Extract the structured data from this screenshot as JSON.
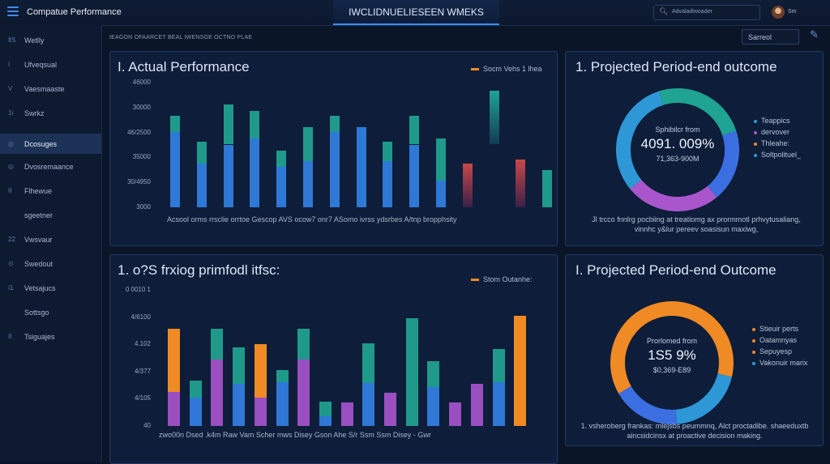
{
  "header": {
    "app_title": "Compatue Performance",
    "center_title": "IWCLIDNUELIESEEN WMEKS",
    "search_placeholder": "Advaladiwoader",
    "user_name": "Sm"
  },
  "sidebar": {
    "items": [
      {
        "icon": "ⅡS",
        "label": "Wetlly",
        "active": false
      },
      {
        "icon": "ⅰ",
        "label": "Ufveqsual",
        "active": false
      },
      {
        "icon": "V",
        "label": "Vaesmaaste",
        "active": false
      },
      {
        "icon": "1ⅰ",
        "label": "Swrkz",
        "active": false
      },
      {
        "icon": "◎",
        "label": "Dcosuges",
        "active": true
      },
      {
        "icon": "◎",
        "label": "Dvosremaance",
        "active": false
      },
      {
        "icon": "ⅠⅠ",
        "label": "Flhewue",
        "active": false
      },
      {
        "icon": "",
        "label": "sgeetner",
        "active": false
      },
      {
        "icon": "22",
        "label": "Vwsvaur",
        "active": false
      },
      {
        "icon": "⊙",
        "label": "Swedout",
        "active": false
      },
      {
        "icon": "ⅰ1",
        "label": "Vetsajucs",
        "active": false
      },
      {
        "icon": "",
        "label": "Sottsgo",
        "active": false
      },
      {
        "icon": "ⅠⅠ",
        "label": "Tsiguajes",
        "active": false
      }
    ]
  },
  "toolbar": {
    "breadcrumb": "IEAGON OFAARCET BEAL IWENSGE OCTNO PLAE",
    "search_label": "Sarreol"
  },
  "panel1": {
    "title": "I. Actual Performance",
    "legend": "Socm Vehs  1 lhea",
    "yticks": [
      "46000",
      "30000",
      "46/2500",
      "35000",
      "30/4950",
      "3000"
    ],
    "xlabels": "Acsool  orms  rrsclie  orrtoe  Gescop  AVS  ocow7  onr7     ASomo ivrss  ydsrbes  A/tnp  bropphsity"
  },
  "panel2": {
    "title": "1. o?S frxiog primfodl itfsc:",
    "legend": "Stom Outanhe:",
    "yticks": [
      "0 0010 1",
      "4/6100",
      "4.102",
      "4/377",
      "4/105",
      "40"
    ],
    "xlabels": "zwo00n  Dsed  .k4m  Raw  Vam  Scher  mws  Disey  Gson  Ahe  S/r  Ssm  Ssm  Disey  -  Gwr"
  },
  "panel3": {
    "title": "1. Projected Period-end outcome",
    "center_line1": "Sphibilcr from",
    "center_value": "4091. 009%",
    "center_line3": "71,363-900M",
    "legend": [
      {
        "label": "Teappics",
        "color": "#2e97d6"
      },
      {
        "label": "dervover",
        "color": "#a955cc"
      },
      {
        "label": "Thleahe:",
        "color": "#f08a24"
      },
      {
        "label": "Soltpolituel_",
        "color": "#2e97d6"
      }
    ],
    "note": "Jl trcco fnnlrg pocbiing at treatiomg ax prormmotl prhvytusaliang, vinnhc y&lur pereev soasisun maxiwg,"
  },
  "panel4": {
    "title": "I. Projected Period-end Outcome",
    "center_line1": "Prorlomed from",
    "center_value": "1S5 9%",
    "center_line3": "$0,369-E89",
    "legend": [
      {
        "label": "Stieuir perts",
        "color": "#f08a24"
      },
      {
        "label": "Oatamnyas",
        "color": "#f08a24"
      },
      {
        "label": "Sepuyesp",
        "color": "#f08a24"
      },
      {
        "label": "Vakonuir marix",
        "color": "#2e97d6"
      }
    ],
    "note": "1. vsheroberg frankas: mlejsbs peummnq, Alct proctadibe. shaeeduxtb aincsidcinsx at proactive decision making."
  },
  "chart_data": [
    {
      "type": "bar",
      "title": "I. Actual Performance",
      "colors": {
        "teal": "#1f9a8a",
        "blue": "#2f78d6",
        "red": "#c8474a"
      },
      "ylim": [
        3000,
        46000
      ],
      "series": [
        {
          "kind": "stacked",
          "x": 0,
          "top": 0.73,
          "split": 0.6
        },
        {
          "kind": "stacked",
          "x": 1,
          "top": 0.52,
          "split": 0.35
        },
        {
          "kind": "stacked",
          "x": 2,
          "top": 0.82,
          "split": 0.5
        },
        {
          "kind": "stacked",
          "x": 3,
          "top": 0.77,
          "split": 0.55
        },
        {
          "kind": "stacked",
          "x": 4,
          "top": 0.45,
          "split": 0.32
        },
        {
          "kind": "stacked",
          "x": 5,
          "top": 0.64,
          "split": 0.37
        },
        {
          "kind": "stacked",
          "x": 6,
          "top": 0.73,
          "split": 0.6
        },
        {
          "kind": "stacked",
          "x": 7,
          "top": 0.64,
          "split": 0.64
        },
        {
          "kind": "stacked",
          "x": 8,
          "top": 0.52,
          "split": 0.37
        },
        {
          "kind": "stacked",
          "x": 9,
          "top": 0.73,
          "split": 0.5
        },
        {
          "kind": "stacked",
          "x": 10,
          "top": 0.55,
          "split": 0.21
        },
        {
          "kind": "red",
          "x": 11,
          "top": 0.35
        },
        {
          "kind": "teal-fade",
          "x": 12,
          "top": 0.93,
          "bottom": 0.5
        },
        {
          "kind": "red",
          "x": 13,
          "top": 0.38
        },
        {
          "kind": "teal",
          "x": 14,
          "top": 0.3
        }
      ]
    },
    {
      "type": "bar",
      "title": "1. o?S frxiog primfodl itfsc:",
      "ylim": [
        40,
        40100
      ],
      "colors": {
        "orange": "#f08a24",
        "purple": "#9a4fc0",
        "teal": "#1f9a8a",
        "blue": "#2f78d6"
      },
      "series": [
        {
          "x": 0,
          "segments": [
            [
              "purple",
              0.31
            ],
            [
              "orange",
              0.88
            ]
          ]
        },
        {
          "x": 1,
          "segments": [
            [
              "blue",
              0.26
            ],
            [
              "teal",
              0.41
            ]
          ]
        },
        {
          "x": 2,
          "segments": [
            [
              "purple",
              0.6
            ],
            [
              "teal",
              0.88
            ]
          ]
        },
        {
          "x": 3,
          "segments": [
            [
              "blue",
              0.38
            ],
            [
              "teal",
              0.71
            ]
          ]
        },
        {
          "x": 4,
          "segments": [
            [
              "purple",
              0.26
            ],
            [
              "orange",
              0.74
            ]
          ]
        },
        {
          "x": 5,
          "segments": [
            [
              "blue",
              0.4
            ],
            [
              "teal",
              0.51
            ]
          ]
        },
        {
          "x": 6,
          "segments": [
            [
              "purple",
              0.6
            ],
            [
              "teal",
              0.88
            ]
          ]
        },
        {
          "x": 7,
          "segments": [
            [
              "blue",
              0.09
            ],
            [
              "teal",
              0.22
            ]
          ]
        },
        {
          "x": 8,
          "segments": [
            [
              "purple",
              0.21
            ]
          ]
        },
        {
          "x": 9,
          "segments": [
            [
              "blue",
              0.39
            ],
            [
              "teal",
              0.75
            ]
          ]
        },
        {
          "x": 10,
          "segments": [
            [
              "purple",
              0.3
            ]
          ]
        },
        {
          "x": 11,
          "segments": [
            [
              "teal",
              0.98
            ]
          ]
        },
        {
          "x": 12,
          "segments": [
            [
              "blue",
              0.35
            ],
            [
              "teal",
              0.59
            ]
          ]
        },
        {
          "x": 13,
          "segments": [
            [
              "purple",
              0.21
            ]
          ]
        },
        {
          "x": 14,
          "segments": [
            [
              "purple",
              0.38
            ]
          ]
        },
        {
          "x": 15,
          "segments": [
            [
              "blue",
              0.4
            ],
            [
              "teal",
              0.7
            ]
          ]
        },
        {
          "x": 16,
          "segments": [
            [
              "orange",
              1.0
            ]
          ]
        }
      ]
    },
    {
      "type": "pie",
      "title": "1. Projected Period-end outcome",
      "slices": [
        {
          "color": "#3b6ee0",
          "value": 0.19
        },
        {
          "color": "#a955cc",
          "value": 0.25
        },
        {
          "color": "#2e97d6",
          "value": 0.31
        },
        {
          "color": "#1fa393",
          "value": 0.25
        }
      ]
    },
    {
      "type": "pie",
      "title": "I. Projected Period-end Outcome",
      "slices": [
        {
          "color": "#f08a24",
          "value": 0.62
        },
        {
          "color": "#2e97d6",
          "value": 0.2
        },
        {
          "color": "#3b6ee0",
          "value": 0.18
        }
      ]
    }
  ]
}
